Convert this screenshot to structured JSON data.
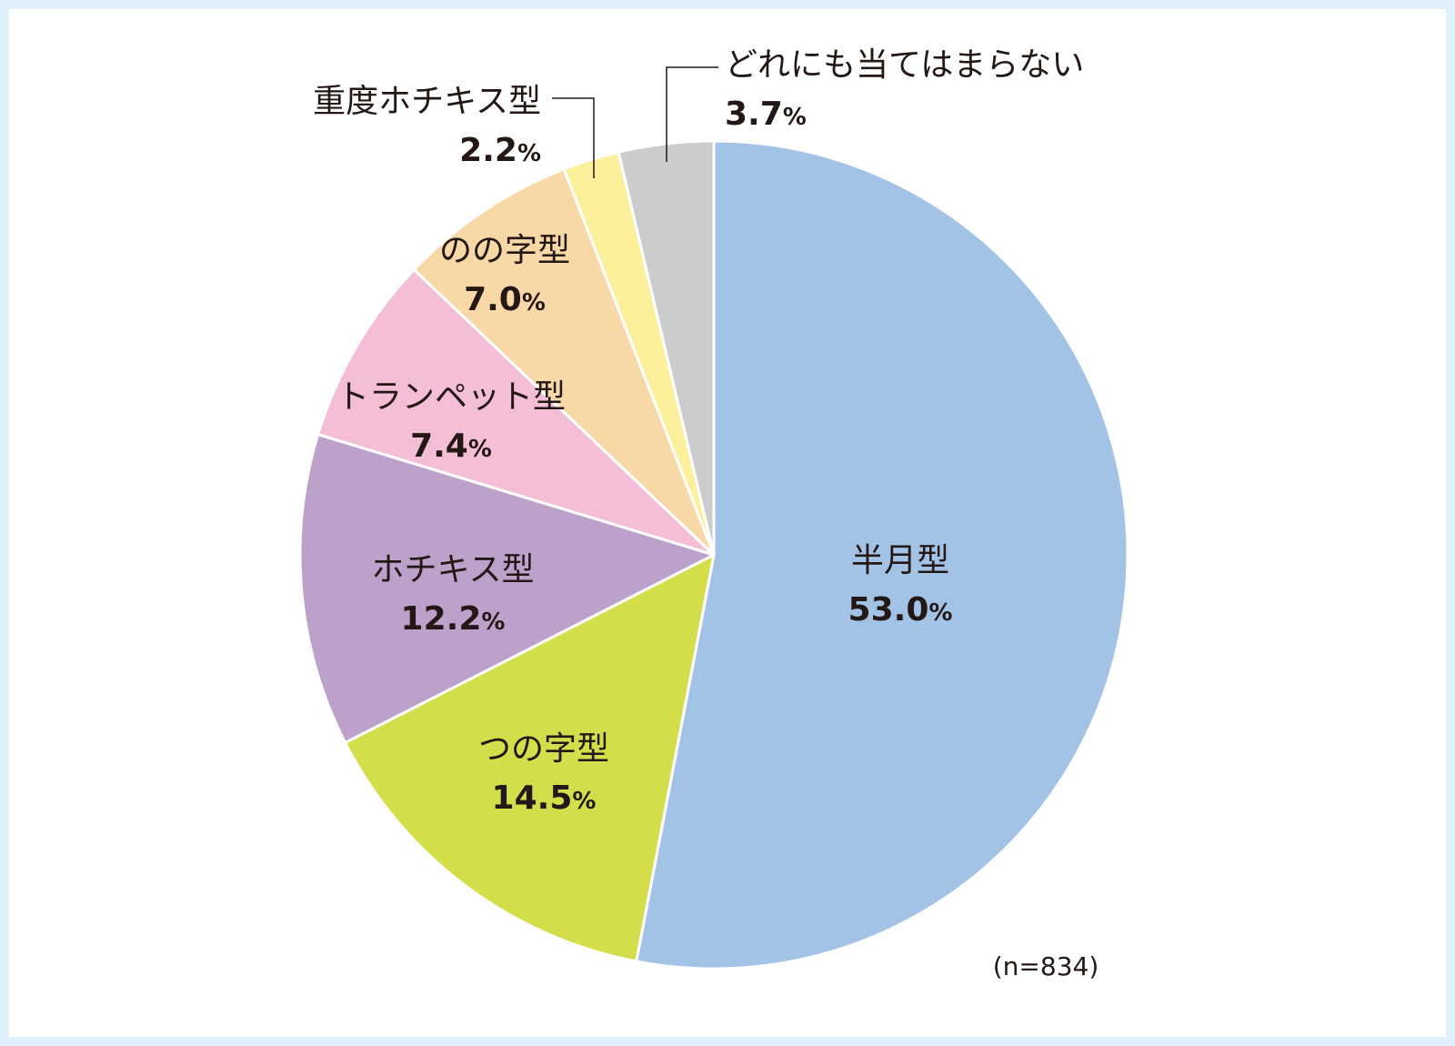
{
  "chart_data": {
    "type": "pie",
    "start": "top",
    "direction": "clockwise",
    "slices": [
      {
        "label": "半月型",
        "value": 53.0,
        "display": "53.0",
        "unit": "%",
        "color": "#a3c3e6"
      },
      {
        "label": "つの字型",
        "value": 14.5,
        "display": "14.5",
        "unit": "%",
        "color": "#d3de4a"
      },
      {
        "label": "ホチキス型",
        "value": 12.2,
        "display": "12.2",
        "unit": "%",
        "color": "#bca2cb"
      },
      {
        "label": "トランペット型",
        "value": 7.4,
        "display": "7.4",
        "unit": "%",
        "color": "#f4bfd6"
      },
      {
        "label": "のの字型",
        "value": 7.0,
        "display": "7.0",
        "unit": "%",
        "color": "#f9d8a8"
      },
      {
        "label": "重度ホチキス型",
        "value": 2.2,
        "display": "2.2",
        "unit": "%",
        "color": "#fdf09d"
      },
      {
        "label": "どれにも当てはまらない",
        "value": 3.7,
        "display": "3.7",
        "unit": "%",
        "color": "#cccccc"
      }
    ],
    "note": "(n=834)"
  }
}
